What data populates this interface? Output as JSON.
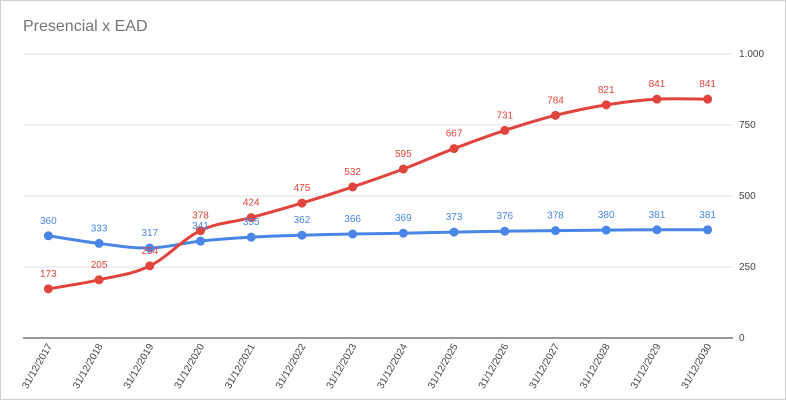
{
  "chart_data": {
    "type": "line",
    "title": "Presencial x EAD",
    "xlabel": "",
    "ylabel": "",
    "x": [
      "31/12/2017",
      "31/12/2018",
      "31/12/2019",
      "31/12/2020",
      "31/12/2021",
      "31/12/2022",
      "31/12/2023",
      "31/12/2024",
      "31/12/2025",
      "31/12/2026",
      "31/12/2027",
      "31/12/2028",
      "31/12/2029",
      "31/12/2030"
    ],
    "ylim": [
      0,
      1000
    ],
    "yticks": [
      0,
      250,
      500,
      750,
      1000
    ],
    "ytick_labels": [
      "0",
      "250",
      "500",
      "750",
      "1.000"
    ],
    "y_axis_side": "right",
    "grid": true,
    "legend": "none",
    "series": [
      {
        "color": "#4a86e8",
        "values": [
          360,
          333,
          317,
          341,
          355,
          362,
          366,
          369,
          373,
          376,
          378,
          380,
          381,
          381
        ]
      },
      {
        "color": "#e0443c",
        "values": [
          173,
          205,
          254,
          378,
          424,
          475,
          532,
          595,
          667,
          731,
          784,
          821,
          841,
          841
        ]
      }
    ]
  }
}
